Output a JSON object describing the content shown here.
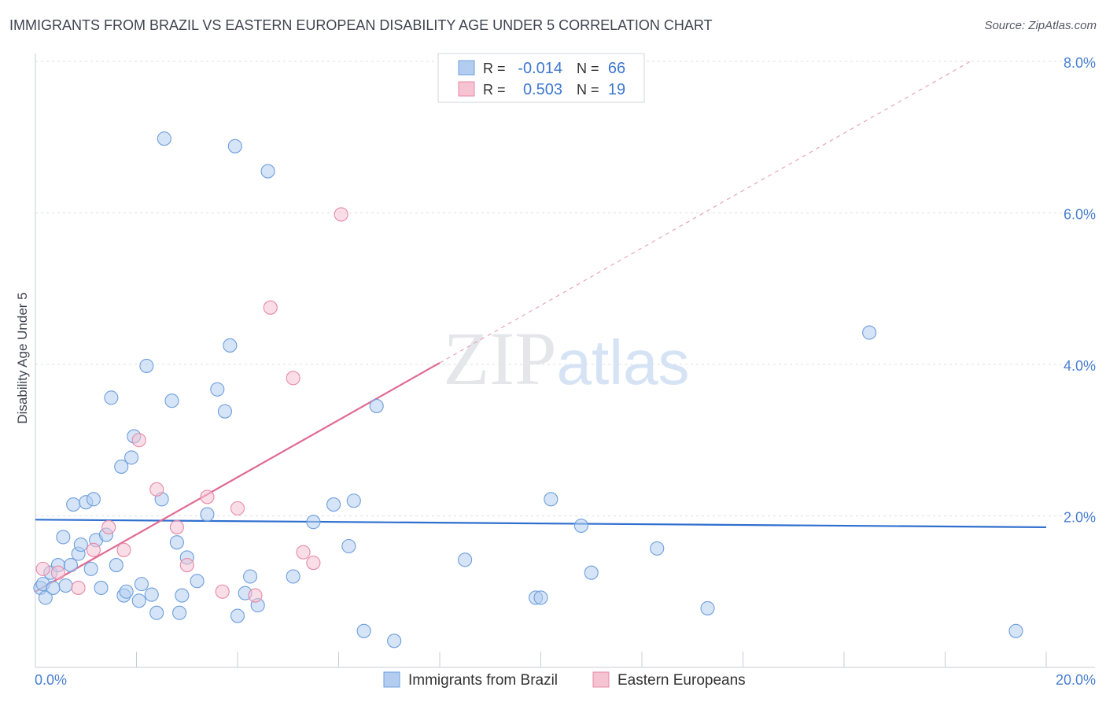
{
  "chart_data": {
    "type": "scatter",
    "title": "IMMIGRANTS FROM BRAZIL VS EASTERN EUROPEAN DISABILITY AGE UNDER 5 CORRELATION CHART",
    "source": "Source: ZipAtlas.com",
    "xlabel": "",
    "ylabel": "Disability Age Under 5",
    "xlim": [
      0,
      20
    ],
    "ylim": [
      0,
      8
    ],
    "x_tick_labels": [
      {
        "value": 0,
        "label": "0.0%"
      },
      {
        "value": 20,
        "label": "20.0%"
      }
    ],
    "y_tick_labels": [
      {
        "value": 2,
        "label": "2.0%"
      },
      {
        "value": 4,
        "label": "4.0%"
      },
      {
        "value": 6,
        "label": "6.0%"
      },
      {
        "value": 8,
        "label": "8.0%"
      }
    ],
    "grid": true,
    "legend_position": "top-center",
    "watermark": "ZIPatlas",
    "series": [
      {
        "name": "Immigrants from Brazil",
        "color": "#6f9fdc",
        "fill": "#b3cdf1",
        "r_label": "R =",
        "r_value": "-0.014",
        "n_label": "N =",
        "n_value": "66",
        "trend": {
          "x0": 0,
          "y0": 1.95,
          "x1": 20,
          "y1": 1.85
        },
        "trend_color": "#2f6fce",
        "points": [
          [
            0.1,
            1.05
          ],
          [
            0.15,
            1.1
          ],
          [
            0.2,
            0.92
          ],
          [
            0.3,
            1.25
          ],
          [
            0.35,
            1.05
          ],
          [
            0.45,
            1.35
          ],
          [
            0.55,
            1.72
          ],
          [
            0.6,
            1.08
          ],
          [
            0.7,
            1.35
          ],
          [
            0.75,
            2.15
          ],
          [
            0.85,
            1.5
          ],
          [
            0.9,
            1.62
          ],
          [
            1.0,
            2.18
          ],
          [
            1.1,
            1.3
          ],
          [
            1.15,
            2.22
          ],
          [
            1.2,
            1.68
          ],
          [
            1.3,
            1.05
          ],
          [
            1.4,
            1.75
          ],
          [
            1.5,
            3.56
          ],
          [
            1.6,
            1.35
          ],
          [
            1.7,
            2.65
          ],
          [
            1.75,
            0.95
          ],
          [
            1.8,
            1.0
          ],
          [
            1.9,
            2.77
          ],
          [
            1.95,
            3.05
          ],
          [
            2.05,
            0.88
          ],
          [
            2.1,
            1.1
          ],
          [
            2.2,
            3.98
          ],
          [
            2.3,
            0.96
          ],
          [
            2.4,
            0.72
          ],
          [
            2.5,
            2.22
          ],
          [
            2.55,
            6.98
          ],
          [
            2.7,
            3.52
          ],
          [
            2.8,
            1.65
          ],
          [
            2.85,
            0.72
          ],
          [
            2.9,
            0.95
          ],
          [
            3.0,
            1.45
          ],
          [
            3.2,
            1.14
          ],
          [
            3.4,
            2.02
          ],
          [
            3.6,
            3.67
          ],
          [
            3.75,
            3.38
          ],
          [
            3.85,
            4.25
          ],
          [
            3.95,
            6.88
          ],
          [
            4.0,
            0.68
          ],
          [
            4.15,
            0.98
          ],
          [
            4.25,
            1.2
          ],
          [
            4.4,
            0.82
          ],
          [
            4.6,
            6.55
          ],
          [
            5.1,
            1.2
          ],
          [
            5.5,
            1.92
          ],
          [
            5.9,
            2.15
          ],
          [
            6.2,
            1.6
          ],
          [
            6.3,
            2.2
          ],
          [
            6.5,
            0.48
          ],
          [
            6.75,
            3.45
          ],
          [
            7.1,
            0.35
          ],
          [
            8.5,
            1.42
          ],
          [
            9.9,
            0.92
          ],
          [
            10.0,
            0.92
          ],
          [
            10.2,
            2.22
          ],
          [
            10.8,
            1.87
          ],
          [
            11.0,
            1.25
          ],
          [
            12.3,
            1.57
          ],
          [
            13.3,
            0.78
          ],
          [
            16.5,
            4.42
          ],
          [
            19.4,
            0.48
          ]
        ]
      },
      {
        "name": "Eastern Europeans",
        "color": "#e68aa8",
        "fill": "#f6c3d3",
        "r_label": "R =",
        "r_value": "0.503",
        "n_label": "N =",
        "n_value": "19",
        "trend": {
          "x0": 0,
          "y0": 1.0,
          "x1": 8,
          "y1": 4.02
        },
        "trend_dash": {
          "x0": 8,
          "y0": 4.02,
          "x1": 18.5,
          "y1": 8.0
        },
        "trend_color": "#e06a93",
        "points": [
          [
            0.15,
            1.3
          ],
          [
            0.45,
            1.25
          ],
          [
            0.85,
            1.05
          ],
          [
            1.15,
            1.55
          ],
          [
            1.45,
            1.85
          ],
          [
            1.75,
            1.55
          ],
          [
            2.05,
            3.0
          ],
          [
            2.4,
            2.35
          ],
          [
            2.8,
            1.85
          ],
          [
            3.0,
            1.35
          ],
          [
            3.4,
            2.25
          ],
          [
            3.7,
            1.0
          ],
          [
            4.0,
            2.1
          ],
          [
            4.35,
            0.95
          ],
          [
            4.65,
            4.75
          ],
          [
            5.1,
            3.82
          ],
          [
            5.3,
            1.52
          ],
          [
            5.5,
            1.38
          ],
          [
            6.05,
            5.98
          ]
        ]
      }
    ]
  }
}
